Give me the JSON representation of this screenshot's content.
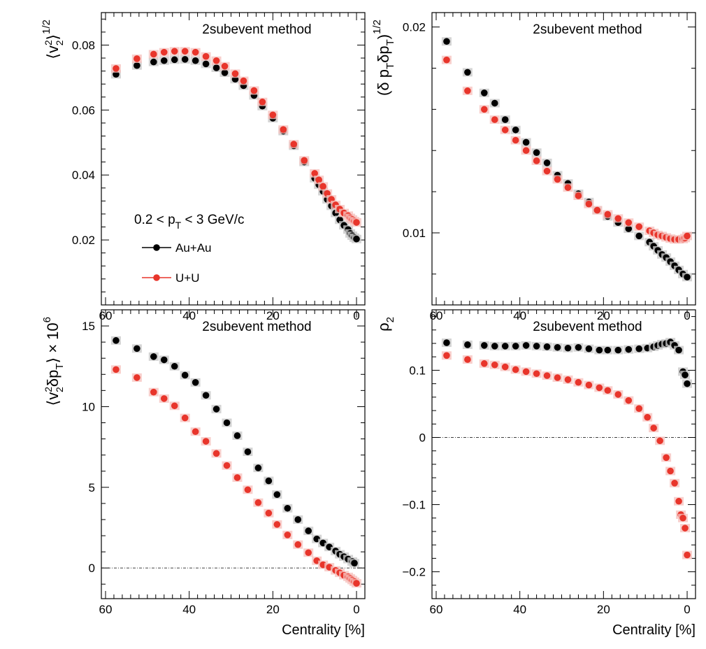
{
  "chart_data": [
    {
      "type": "scatter",
      "panel": "top-left",
      "annotation": "2subevent method",
      "xlabel": "",
      "ylabel": "⟨v22⟩1/2",
      "xlim": [
        61,
        -2
      ],
      "ylim": [
        0,
        0.09
      ],
      "xticks": [
        "60",
        "40",
        "20",
        "0"
      ],
      "yticks": [
        {
          "v": 0.02,
          "label": "0.02"
        },
        {
          "v": 0.04,
          "label": "0.04"
        },
        {
          "v": 0.06,
          "label": "0.06"
        },
        {
          "v": 0.08,
          "label": "0.08"
        }
      ],
      "kinematics": "0.2 < pT < 3 GeV/c",
      "legend": [
        {
          "label": "Au+Au",
          "color": "#000000"
        },
        {
          "label": "U+U",
          "color": "#e8352b"
        }
      ],
      "series": [
        {
          "name": "Au+Au",
          "color": "#000000",
          "x": [
            57.5,
            52.5,
            48.5,
            46,
            43.5,
            41,
            38.5,
            36,
            33.5,
            31.5,
            29,
            27,
            24.5,
            22.5,
            20,
            17.5,
            15,
            12.5,
            10,
            9,
            8,
            7,
            6,
            5,
            4,
            3,
            2,
            1.5,
            1,
            0.5,
            0
          ],
          "y": [
            0.071,
            0.0737,
            0.0748,
            0.0752,
            0.0755,
            0.0756,
            0.0752,
            0.0742,
            0.073,
            0.0715,
            0.0695,
            0.0675,
            0.0645,
            0.0612,
            0.0575,
            0.0535,
            0.049,
            0.044,
            0.039,
            0.037,
            0.035,
            0.0325,
            0.0305,
            0.0283,
            0.0262,
            0.0245,
            0.0232,
            0.022,
            0.0213,
            0.0207,
            0.0203
          ]
        },
        {
          "name": "U+U",
          "color": "#e8352b",
          "x": [
            57.5,
            52.5,
            48.5,
            46,
            43.5,
            41,
            38.5,
            36,
            33.5,
            31.5,
            29,
            27,
            24.5,
            22.5,
            20,
            17.5,
            15,
            12.5,
            10,
            9,
            8,
            7,
            6,
            5,
            4,
            3,
            2,
            1.5,
            1,
            0.5,
            0
          ],
          "y": [
            0.0728,
            0.0758,
            0.0772,
            0.0778,
            0.0781,
            0.0781,
            0.0778,
            0.0765,
            0.0752,
            0.0735,
            0.0712,
            0.069,
            0.066,
            0.0625,
            0.0585,
            0.054,
            0.0495,
            0.0445,
            0.0405,
            0.0385,
            0.0365,
            0.0343,
            0.0325,
            0.0308,
            0.0295,
            0.0283,
            0.0275,
            0.0268,
            0.0263,
            0.0258,
            0.0254
          ]
        }
      ]
    },
    {
      "type": "scatter",
      "panel": "top-right",
      "annotation": "2subevent method",
      "xlabel": "",
      "ylabel": "(δ pTδpT)1/2",
      "xlim": [
        61,
        -2
      ],
      "ylim": [
        0.0065,
        0.0207
      ],
      "xticks": [
        "60",
        "40",
        "20",
        "0"
      ],
      "yticks": [
        {
          "v": 0.01,
          "label": "0.01"
        },
        {
          "v": 0.02,
          "label": "0.02"
        }
      ],
      "series": [
        {
          "name": "Au+Au",
          "color": "#000000",
          "x": [
            57.5,
            52.5,
            48.5,
            46,
            43.5,
            41,
            38.5,
            36,
            33.5,
            31,
            28.5,
            26,
            23.5,
            21.5,
            19,
            16.5,
            14,
            11.5,
            9,
            8,
            7,
            6,
            5,
            4,
            3,
            2,
            1,
            0
          ],
          "y": [
            0.0193,
            0.0178,
            0.0168,
            0.0163,
            0.0155,
            0.015,
            0.0144,
            0.0139,
            0.0134,
            0.0128,
            0.0124,
            0.0119,
            0.0115,
            0.0111,
            0.0108,
            0.0105,
            0.0102,
            0.00985,
            0.00955,
            0.00935,
            0.00915,
            0.00895,
            0.0088,
            0.0086,
            0.0084,
            0.0082,
            0.008,
            0.00785
          ]
        },
        {
          "name": "U+U",
          "color": "#e8352b",
          "x": [
            57.5,
            52.5,
            48.5,
            46,
            43.5,
            41,
            38.5,
            36,
            33.5,
            31,
            28.5,
            26,
            23.5,
            21.5,
            19,
            16.5,
            14,
            11.5,
            9,
            8,
            7,
            6,
            5,
            4,
            3,
            2,
            1,
            0.5,
            0
          ],
          "y": [
            0.0184,
            0.0169,
            0.016,
            0.0155,
            0.015,
            0.0145,
            0.014,
            0.0135,
            0.013,
            0.0126,
            0.0122,
            0.0118,
            0.0114,
            0.0111,
            0.0109,
            0.0107,
            0.0105,
            0.0103,
            0.0101,
            0.01,
            0.0099,
            0.00985,
            0.00978,
            0.00972,
            0.00968,
            0.00968,
            0.0097,
            0.00975,
            0.00985
          ]
        }
      ]
    },
    {
      "type": "scatter",
      "panel": "bottom-left",
      "annotation": "2subevent method",
      "xlabel": "Centrality [%]",
      "ylabel": "⟨v22δpT⟩ × 106",
      "xlim": [
        61,
        -2
      ],
      "ylim": [
        -1.9,
        16
      ],
      "xticks": [
        "60",
        "40",
        "20",
        "0"
      ],
      "yticks": [
        {
          "v": 0,
          "label": "0"
        },
        {
          "v": 5,
          "label": "5"
        },
        {
          "v": 10,
          "label": "10"
        },
        {
          "v": 15,
          "label": "15"
        }
      ],
      "reference_line": 0,
      "series": [
        {
          "name": "Au+Au",
          "color": "#000000",
          "x": [
            57.5,
            52.5,
            48.5,
            46,
            43.5,
            41,
            38.5,
            36,
            33.5,
            31,
            28.5,
            26,
            23.5,
            21,
            19,
            16.5,
            14,
            11.5,
            9.5,
            8,
            6.5,
            5,
            4,
            3,
            2,
            1,
            0.5
          ],
          "y": [
            14.1,
            13.6,
            13.1,
            12.9,
            12.5,
            11.95,
            11.5,
            10.7,
            9.85,
            9.0,
            8.2,
            7.2,
            6.2,
            5.4,
            4.55,
            3.7,
            3.0,
            2.3,
            1.8,
            1.55,
            1.3,
            1.05,
            0.85,
            0.7,
            0.55,
            0.4,
            0.3
          ]
        },
        {
          "name": "U+U",
          "color": "#e8352b",
          "x": [
            57.5,
            52.5,
            48.5,
            46,
            43.5,
            41,
            38.5,
            36,
            33.5,
            31,
            28.5,
            26,
            23.5,
            21,
            19,
            16.5,
            14,
            11.5,
            9.5,
            8,
            6.5,
            5,
            4,
            3,
            2,
            1.5,
            1,
            0.5,
            0
          ],
          "y": [
            12.3,
            11.8,
            10.9,
            10.5,
            10.05,
            9.3,
            8.45,
            7.85,
            7.1,
            6.35,
            5.6,
            4.85,
            4.05,
            3.4,
            2.7,
            2.05,
            1.45,
            0.95,
            0.45,
            0.2,
            0.05,
            -0.15,
            -0.3,
            -0.45,
            -0.55,
            -0.65,
            -0.75,
            -0.85,
            -0.95
          ]
        }
      ]
    },
    {
      "type": "scatter",
      "panel": "bottom-right",
      "annotation": "2subevent method",
      "xlabel": "Centrality [%]",
      "ylabel": "ρ2",
      "xlim": [
        61,
        -2
      ],
      "ylim": [
        -0.24,
        0.19
      ],
      "xticks": [
        "60",
        "40",
        "20",
        "0"
      ],
      "yticks": [
        {
          "v": -0.2,
          "label": "−0.2"
        },
        {
          "v": -0.1,
          "label": "−0.1"
        },
        {
          "v": 0,
          "label": "0"
        },
        {
          "v": 0.1,
          "label": "0.1"
        }
      ],
      "reference_line": 0,
      "series": [
        {
          "name": "Au+Au",
          "color": "#000000",
          "x": [
            57.5,
            52.5,
            48.5,
            46,
            43.5,
            41,
            38.5,
            36,
            33.5,
            31,
            28.5,
            26,
            23.5,
            21,
            19,
            16.5,
            14,
            11.5,
            9.5,
            8,
            7,
            6,
            5,
            4,
            3,
            2,
            1,
            0.5,
            0
          ],
          "y": [
            0.141,
            0.138,
            0.137,
            0.136,
            0.136,
            0.136,
            0.137,
            0.136,
            0.135,
            0.134,
            0.133,
            0.134,
            0.132,
            0.13,
            0.13,
            0.13,
            0.131,
            0.132,
            0.133,
            0.135,
            0.137,
            0.139,
            0.14,
            0.142,
            0.137,
            0.13,
            0.098,
            0.093,
            0.08
          ]
        },
        {
          "name": "U+U",
          "color": "#e8352b",
          "x": [
            57.5,
            52.5,
            48.5,
            46,
            43.5,
            41,
            38.5,
            36,
            33.5,
            31,
            28.5,
            26,
            23.5,
            21,
            19,
            16.5,
            14,
            11.5,
            9.5,
            8,
            6.5,
            5,
            4,
            3,
            2,
            1.5,
            1,
            0.5,
            0
          ],
          "y": [
            0.122,
            0.116,
            0.11,
            0.108,
            0.105,
            0.101,
            0.098,
            0.095,
            0.092,
            0.089,
            0.086,
            0.082,
            0.078,
            0.074,
            0.07,
            0.064,
            0.055,
            0.043,
            0.03,
            0.014,
            -0.005,
            -0.03,
            -0.05,
            -0.068,
            -0.095,
            -0.115,
            -0.12,
            -0.135,
            -0.175
          ]
        }
      ]
    }
  ]
}
